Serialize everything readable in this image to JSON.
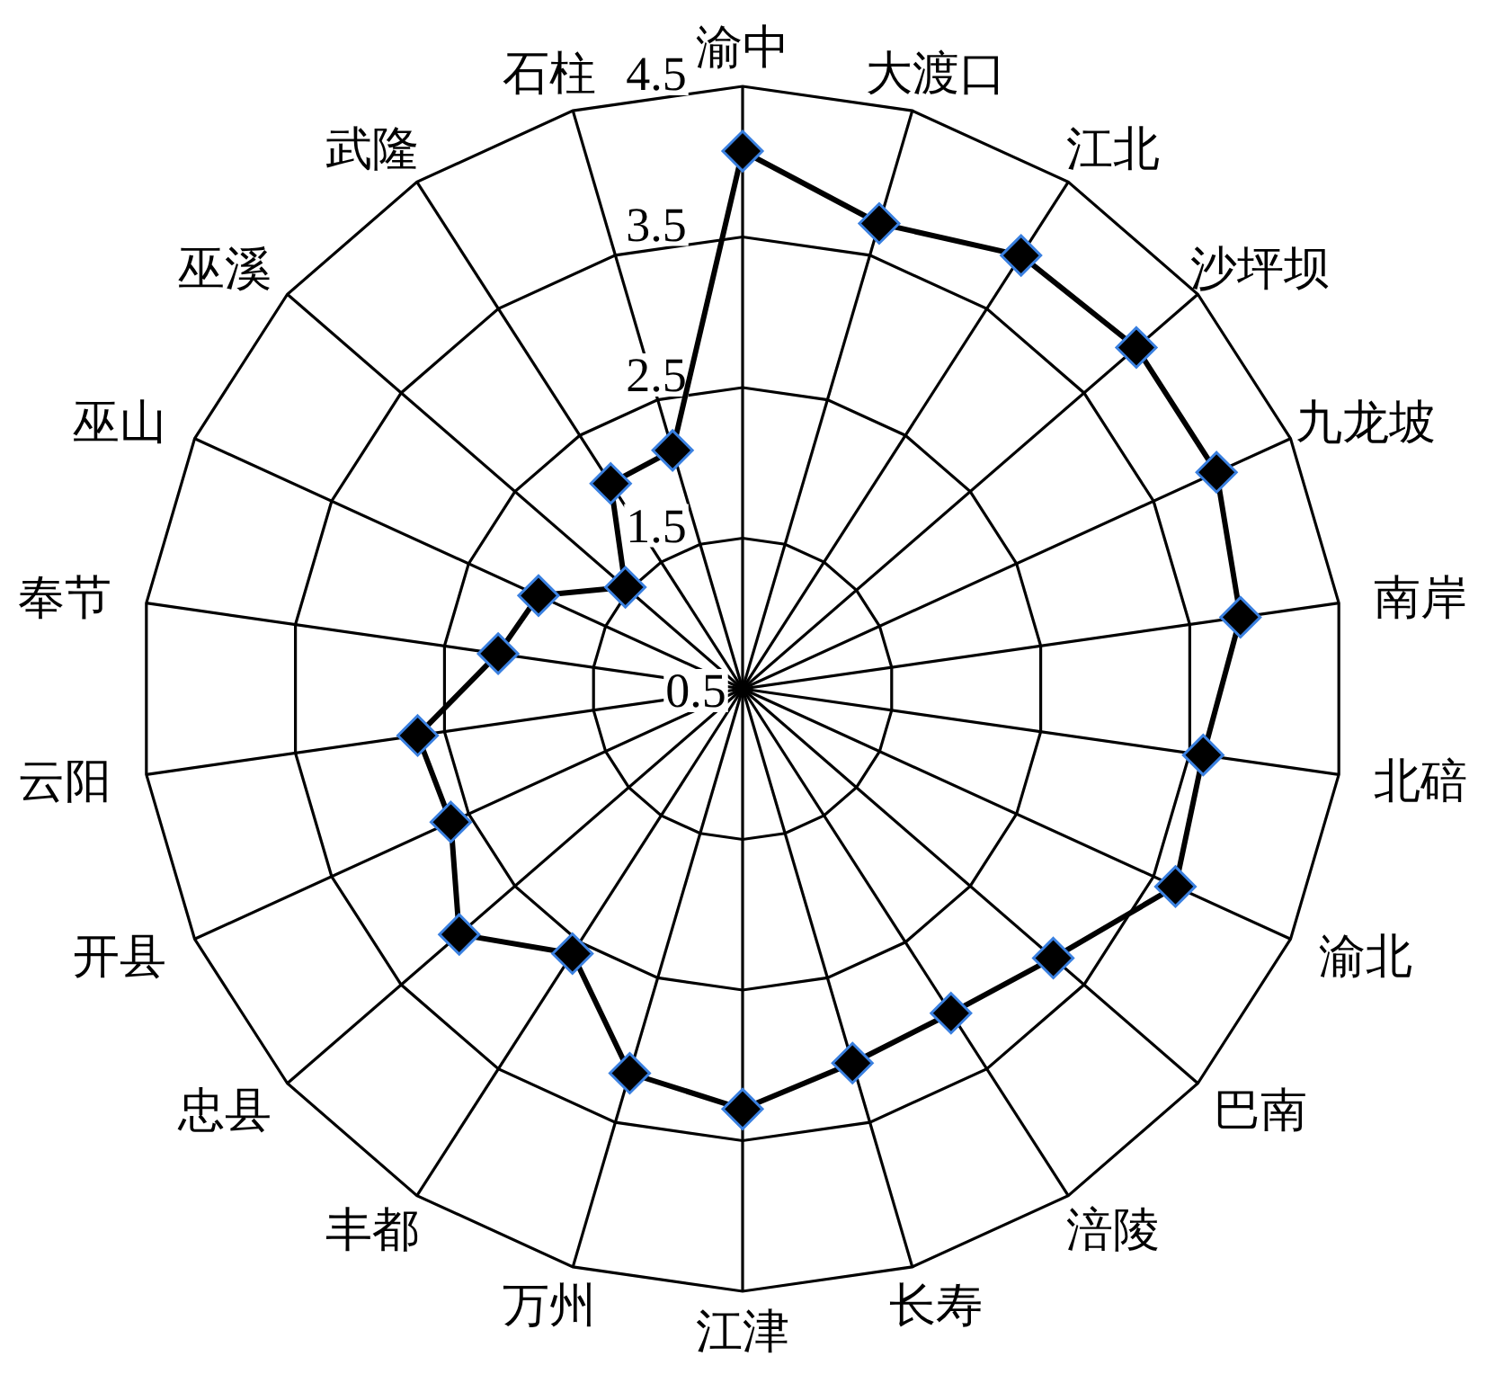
{
  "chart_data": {
    "type": "radar",
    "categories": [
      "渝中",
      "大渡口",
      "江北",
      "沙坪坝",
      "九龙坡",
      "南岸",
      "北碚",
      "渝北",
      "巴南",
      "涪陵",
      "长寿",
      "江津",
      "万州",
      "丰都",
      "忠县",
      "开县",
      "云阳",
      "奉节",
      "巫山",
      "巫溪",
      "武隆",
      "石柱"
    ],
    "series": [
      {
        "color": "#000000",
        "values": [
          4.07,
          3.72,
          3.92,
          3.96,
          3.96,
          3.84,
          3.59,
          3.66,
          3.23,
          3.06,
          3.09,
          3.29,
          3.16,
          2.59,
          2.99,
          2.63,
          2.68,
          2.14,
          1.99,
          1.53,
          2.12,
          2.15
        ]
      }
    ],
    "ylim": [
      0.5,
      4.5
    ],
    "yticks": [
      0.5,
      1.5,
      2.5,
      3.5,
      4.5
    ],
    "grid": true,
    "marker": "diamond",
    "line_style": "solid"
  }
}
